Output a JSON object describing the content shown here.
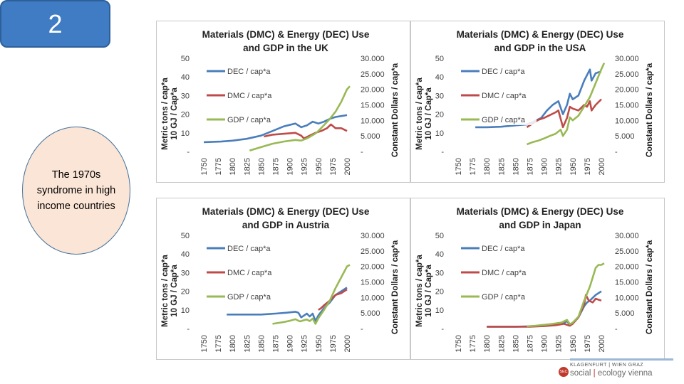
{
  "slide": {
    "number": "2",
    "caption": "The 1970s syndrome in high income countries"
  },
  "logo": {
    "line1": "KLAGENFURT | WIEN GRAZ",
    "badge": "SEC",
    "line2_a": "social",
    "line2_b": "ecology vienna"
  },
  "colors": {
    "dec": "#4a7ebb",
    "dmc": "#be4b48",
    "gdp": "#98b954"
  },
  "chart_data": [
    {
      "type": "line",
      "title": "Materials (DMC) & Energy (DEC) Use",
      "subtitle": "and GDP in the UK",
      "ylabel_left": [
        "Metric tons / cap*a",
        "10 GJ / Cap*a"
      ],
      "ylabel_right": "Constant Dollars / cap*a",
      "left_ticks": [
        "50",
        "40",
        "30",
        "20",
        "10",
        "-"
      ],
      "right_ticks": [
        "30.000",
        "25.000",
        "20.000",
        "15.000",
        "10.000",
        "5.000",
        "-"
      ],
      "x_ticks": [
        "1750",
        "1775",
        "1800",
        "1825",
        "1850",
        "1875",
        "1900",
        "1925",
        "1950",
        "1975",
        "2000"
      ],
      "ylim_left": [
        0,
        50
      ],
      "ylim_right": [
        0,
        30000
      ],
      "xlim": [
        1750,
        2000
      ],
      "legend": [
        "DEC / cap*a",
        "DMC / cap*a",
        "GDP / cap*a"
      ],
      "series": [
        {
          "name": "DEC / cap*a",
          "axis": "left",
          "points": [
            [
              1750,
              5
            ],
            [
              1780,
              5.3
            ],
            [
              1800,
              5.8
            ],
            [
              1825,
              6.8
            ],
            [
              1850,
              8.5
            ],
            [
              1870,
              11
            ],
            [
              1890,
              13.5
            ],
            [
              1910,
              15
            ],
            [
              1920,
              13
            ],
            [
              1930,
              14
            ],
            [
              1940,
              16
            ],
            [
              1950,
              15
            ],
            [
              1960,
              16
            ],
            [
              1970,
              17.5
            ],
            [
              1980,
              18.5
            ],
            [
              1990,
              19
            ],
            [
              2000,
              19.5
            ]
          ]
        },
        {
          "name": "DMC / cap*a",
          "axis": "left",
          "points": [
            [
              1855,
              8
            ],
            [
              1870,
              9
            ],
            [
              1890,
              9.5
            ],
            [
              1910,
              10
            ],
            [
              1920,
              8.5
            ],
            [
              1925,
              7
            ],
            [
              1935,
              8.5
            ],
            [
              1945,
              10
            ],
            [
              1955,
              11
            ],
            [
              1965,
              12.5
            ],
            [
              1972,
              14.5
            ],
            [
              1980,
              12.5
            ],
            [
              1990,
              12.5
            ],
            [
              2000,
              11
            ]
          ]
        },
        {
          "name": "GDP / cap*a",
          "axis": "right",
          "points": [
            [
              1830,
              300
            ],
            [
              1850,
              1400
            ],
            [
              1870,
              2500
            ],
            [
              1890,
              3200
            ],
            [
              1910,
              3700
            ],
            [
              1920,
              3500
            ],
            [
              1930,
              4200
            ],
            [
              1945,
              5800
            ],
            [
              1950,
              6600
            ],
            [
              1960,
              8500
            ],
            [
              1970,
              10500
            ],
            [
              1980,
              12800
            ],
            [
              1990,
              16000
            ],
            [
              2000,
              20000
            ],
            [
              2005,
              21000
            ]
          ]
        }
      ]
    },
    {
      "type": "line",
      "title": "Materials (DMC) & Energy (DEC) Use",
      "subtitle": "and GDP in the USA",
      "ylabel_left": [
        "Metric tons / cap*a",
        "10 GJ / Cap*a"
      ],
      "ylabel_right": "Constant Dollars / cap*a",
      "left_ticks": [
        "50",
        "40",
        "30",
        "20",
        "10",
        "-"
      ],
      "right_ticks": [
        "30.000",
        "25.000",
        "20.000",
        "15.000",
        "10.000",
        "5.000",
        "-"
      ],
      "x_ticks": [
        "1750",
        "1775",
        "1800",
        "1825",
        "1850",
        "1875",
        "1900",
        "1925",
        "1950",
        "1975",
        "2000"
      ],
      "ylim_left": [
        0,
        50
      ],
      "ylim_right": [
        0,
        30000
      ],
      "xlim": [
        1750,
        2000
      ],
      "legend": [
        "DEC / cap*a",
        "DMC / cap*a",
        "GDP / cap*a"
      ],
      "series": [
        {
          "name": "DEC / cap*a",
          "axis": "left",
          "points": [
            [
              1780,
              13
            ],
            [
              1800,
              13
            ],
            [
              1825,
              13.3
            ],
            [
              1850,
              14
            ],
            [
              1870,
              14.5
            ],
            [
              1885,
              16.5
            ],
            [
              1895,
              18
            ],
            [
              1905,
              22
            ],
            [
              1915,
              25
            ],
            [
              1920,
              26
            ],
            [
              1925,
              27
            ],
            [
              1933,
              20
            ],
            [
              1940,
              25
            ],
            [
              1945,
              31
            ],
            [
              1950,
              28
            ],
            [
              1960,
              30
            ],
            [
              1970,
              38
            ],
            [
              1975,
              41
            ],
            [
              1980,
              44
            ],
            [
              1983,
              38
            ],
            [
              1990,
              42
            ],
            [
              2000,
              43
            ]
          ]
        },
        {
          "name": "DMC / cap*a",
          "axis": "left",
          "points": [
            [
              1870,
              13
            ],
            [
              1880,
              15
            ],
            [
              1890,
              17
            ],
            [
              1900,
              18
            ],
            [
              1910,
              19.5
            ],
            [
              1920,
              21
            ],
            [
              1925,
              22
            ],
            [
              1933,
              13
            ],
            [
              1940,
              18
            ],
            [
              1945,
              24
            ],
            [
              1950,
              23
            ],
            [
              1960,
              22
            ],
            [
              1970,
              25
            ],
            [
              1975,
              24
            ],
            [
              1980,
              27
            ],
            [
              1983,
              22
            ],
            [
              1990,
              25
            ],
            [
              2000,
              28
            ]
          ]
        },
        {
          "name": "GDP / cap*a",
          "axis": "right",
          "points": [
            [
              1870,
              2300
            ],
            [
              1880,
              3000
            ],
            [
              1890,
              3500
            ],
            [
              1900,
              4200
            ],
            [
              1910,
              5000
            ],
            [
              1920,
              5700
            ],
            [
              1929,
              7000
            ],
            [
              1933,
              5000
            ],
            [
              1940,
              7000
            ],
            [
              1945,
              11000
            ],
            [
              1950,
              10000
            ],
            [
              1960,
              11500
            ],
            [
              1970,
              14500
            ],
            [
              1980,
              17500
            ],
            [
              1990,
              22000
            ],
            [
              2000,
              26500
            ],
            [
              2005,
              28500
            ]
          ]
        }
      ]
    },
    {
      "type": "line",
      "title": "Materials (DMC) & Energy (DEC) Use",
      "subtitle": "and GDP in Austria",
      "ylabel_left": [
        "Metric tons / cap*a",
        "10 GJ / Cap*a"
      ],
      "ylabel_right": "Constant Dollars / cap*a",
      "left_ticks": [
        "50",
        "40",
        "30",
        "20",
        "10",
        "-"
      ],
      "right_ticks": [
        "30.000",
        "25.000",
        "20.000",
        "15.000",
        "10.000",
        "5.000",
        "-"
      ],
      "x_ticks": [
        "1750",
        "1775",
        "1800",
        "1825",
        "1850",
        "1875",
        "1900",
        "1925",
        "1950",
        "1975",
        "2000"
      ],
      "ylim_left": [
        0,
        50
      ],
      "ylim_right": [
        0,
        30000
      ],
      "xlim": [
        1750,
        2000
      ],
      "legend": [
        "DEC / cap*a",
        "DMC / cap*a",
        "GDP / cap*a"
      ],
      "series": [
        {
          "name": "DEC / cap*a",
          "axis": "left",
          "points": [
            [
              1790,
              7.5
            ],
            [
              1800,
              7.5
            ],
            [
              1825,
              7.5
            ],
            [
              1850,
              7.5
            ],
            [
              1875,
              8
            ],
            [
              1895,
              8.5
            ],
            [
              1910,
              9
            ],
            [
              1915,
              8.5
            ],
            [
              1920,
              6
            ],
            [
              1925,
              7
            ],
            [
              1930,
              8
            ],
            [
              1935,
              6.5
            ],
            [
              1940,
              8
            ],
            [
              1945,
              4
            ],
            [
              1950,
              7
            ],
            [
              1955,
              9
            ],
            [
              1960,
              11
            ],
            [
              1970,
              14
            ],
            [
              1980,
              18
            ],
            [
              1990,
              20
            ],
            [
              2000,
              22
            ]
          ]
        },
        {
          "name": "DMC / cap*a",
          "axis": "left",
          "points": [
            [
              1950,
              10
            ],
            [
              1955,
              11
            ],
            [
              1960,
              12.5
            ],
            [
              1970,
              15
            ],
            [
              1980,
              18
            ],
            [
              1990,
              19
            ],
            [
              2000,
              21
            ]
          ]
        },
        {
          "name": "GDP / cap*a",
          "axis": "right",
          "points": [
            [
              1870,
              1500
            ],
            [
              1880,
              1800
            ],
            [
              1890,
              2100
            ],
            [
              1900,
              2500
            ],
            [
              1910,
              3000
            ],
            [
              1918,
              2300
            ],
            [
              1925,
              2700
            ],
            [
              1930,
              2900
            ],
            [
              1935,
              2400
            ],
            [
              1940,
              3200
            ],
            [
              1945,
              1500
            ],
            [
              1950,
              3300
            ],
            [
              1960,
              6000
            ],
            [
              1970,
              9000
            ],
            [
              1980,
              13000
            ],
            [
              1990,
              16500
            ],
            [
              2000,
              20000
            ],
            [
              2005,
              20500
            ]
          ]
        }
      ]
    },
    {
      "type": "line",
      "title": "Materials (DMC) & Energy (DEC) Use",
      "subtitle": "and GDP in Japan",
      "ylabel_left": [
        "Metric tons / cap*a",
        "10 GJ / Cap*a"
      ],
      "ylabel_right": "Constant Dollars / cap*a",
      "left_ticks": [
        "50",
        "40",
        "30",
        "20",
        "10",
        "-"
      ],
      "right_ticks": [
        "30.000",
        "25.000",
        "20.000",
        "15.000",
        "10.000",
        "5.000",
        "-"
      ],
      "x_ticks": [
        "1750",
        "1775",
        "1800",
        "1825",
        "1850",
        "1875",
        "1900",
        "1925",
        "1950",
        "1975",
        "2000"
      ],
      "ylim_left": [
        0,
        50
      ],
      "ylim_right": [
        0,
        30000
      ],
      "xlim": [
        1750,
        2000
      ],
      "legend": [
        "DEC / cap*a",
        "DMC / cap*a",
        "GDP / cap*a"
      ],
      "series": [
        {
          "name": "DEC / cap*a",
          "axis": "left",
          "points": [
            [
              1800,
              1
            ],
            [
              1825,
              1
            ],
            [
              1850,
              1
            ],
            [
              1875,
              1.2
            ],
            [
              1900,
              1.5
            ],
            [
              1920,
              2
            ],
            [
              1935,
              3
            ],
            [
              1940,
              4
            ],
            [
              1945,
              2
            ],
            [
              1950,
              3
            ],
            [
              1960,
              6
            ],
            [
              1970,
              12
            ],
            [
              1975,
              14
            ],
            [
              1980,
              15
            ],
            [
              1990,
              18
            ],
            [
              2000,
              20
            ]
          ]
        },
        {
          "name": "DMC / cap*a",
          "axis": "left",
          "points": [
            [
              1800,
              1
            ],
            [
              1825,
              1
            ],
            [
              1850,
              1
            ],
            [
              1875,
              1
            ],
            [
              1900,
              1.3
            ],
            [
              1920,
              1.8
            ],
            [
              1935,
              2.5
            ],
            [
              1945,
              1.5
            ],
            [
              1950,
              2.5
            ],
            [
              1960,
              6
            ],
            [
              1970,
              13
            ],
            [
              1973,
              18
            ],
            [
              1978,
              15
            ],
            [
              1985,
              14
            ],
            [
              1990,
              16
            ],
            [
              2000,
              15
            ]
          ]
        },
        {
          "name": "GDP / cap*a",
          "axis": "right",
          "points": [
            [
              1870,
              700
            ],
            [
              1885,
              900
            ],
            [
              1900,
              1200
            ],
            [
              1915,
              1500
            ],
            [
              1930,
              1900
            ],
            [
              1940,
              2800
            ],
            [
              1945,
              1400
            ],
            [
              1950,
              1900
            ],
            [
              1960,
              3800
            ],
            [
              1970,
              9000
            ],
            [
              1980,
              13500
            ],
            [
              1990,
              19500
            ],
            [
              1995,
              20500
            ],
            [
              2000,
              20500
            ],
            [
              2005,
              21000
            ]
          ]
        }
      ]
    }
  ]
}
